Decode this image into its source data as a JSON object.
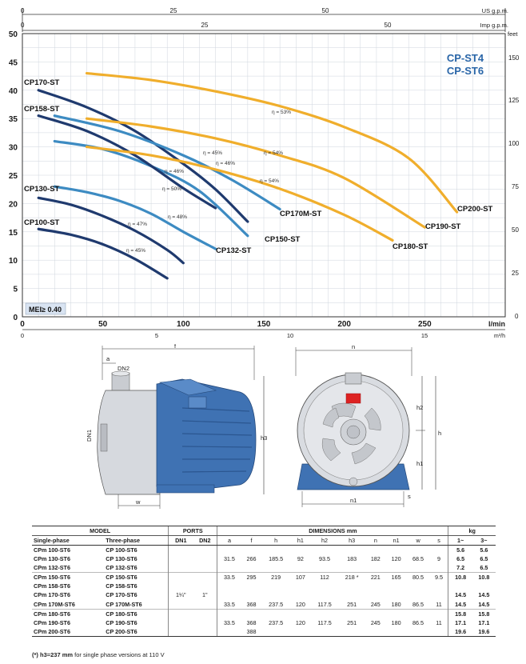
{
  "chart_data": {
    "type": "line",
    "title": "CP-ST4\nCP-ST6",
    "title_lines": [
      "CP-ST4",
      "CP-ST6"
    ],
    "badge": "MEI≥ 0.40",
    "xlabel": "l/min",
    "ylabel": "",
    "xlim": [
      0,
      300
    ],
    "ylim": [
      0,
      50
    ],
    "x_ticks": [
      0,
      50,
      100,
      150,
      200,
      250
    ],
    "y_ticks": [
      0,
      5,
      10,
      15,
      20,
      25,
      30,
      35,
      40,
      45,
      50
    ],
    "secondary_axes": {
      "us_gpm": {
        "label": "US g.p.m.",
        "ticks": [
          "0",
          "25",
          "50"
        ]
      },
      "imp_gpm": {
        "label": "Imp g.p.m.",
        "ticks": [
          "0",
          "25",
          "50"
        ]
      },
      "m3h": {
        "label": "m³/h",
        "ticks": [
          "0",
          "5",
          "10",
          "15"
        ]
      },
      "feet": {
        "label": "feet",
        "ticks": [
          "0",
          "25",
          "50",
          "75",
          "100",
          "125",
          "150"
        ]
      }
    },
    "grid": true,
    "series": [
      {
        "name": "CP100-ST",
        "color": "#1f3a6e",
        "x": [
          10,
          30,
          50,
          70,
          90
        ],
        "y": [
          15.5,
          14.5,
          12.8,
          10.2,
          6.8
        ]
      },
      {
        "name": "CP130-ST",
        "color": "#1f3a6e",
        "x": [
          10,
          30,
          50,
          70,
          90,
          100
        ],
        "y": [
          21,
          19.8,
          17.8,
          15.2,
          11.8,
          9.5
        ]
      },
      {
        "name": "CP132-ST",
        "color": "#3d8bc2",
        "x": [
          20,
          40,
          60,
          80,
          100,
          120
        ],
        "y": [
          23,
          22,
          20.5,
          18.2,
          15,
          12
        ]
      },
      {
        "name": "CP150-ST",
        "color": "#3d8bc2",
        "x": [
          20,
          50,
          80,
          110,
          140
        ],
        "y": [
          31,
          29.6,
          26.6,
          22.2,
          14.3
        ]
      },
      {
        "name": "CP158-ST",
        "color": "#1f3a6e",
        "x": [
          10,
          40,
          70,
          100,
          120
        ],
        "y": [
          35.5,
          32.8,
          28.5,
          22.7,
          19.2
        ]
      },
      {
        "name": "CP170-ST",
        "color": "#1f3a6e",
        "x": [
          10,
          40,
          70,
          100,
          120,
          140
        ],
        "y": [
          40,
          37,
          32.8,
          27,
          22.5,
          16.8
        ]
      },
      {
        "name": "CP170M-ST",
        "color": "#3d8bc2",
        "x": [
          20,
          60,
          100,
          130,
          160
        ],
        "y": [
          35.5,
          32.8,
          28.5,
          24.2,
          19
        ]
      },
      {
        "name": "CP180-ST",
        "color": "#f0ae2c",
        "x": [
          40,
          80,
          120,
          160,
          200,
          230
        ],
        "y": [
          30,
          28.5,
          26,
          22.6,
          18,
          13.5
        ]
      },
      {
        "name": "CP190-ST",
        "color": "#f0ae2c",
        "x": [
          40,
          80,
          120,
          160,
          200,
          250
        ],
        "y": [
          35,
          33.6,
          31.5,
          28.5,
          24.5,
          15.8
        ]
      },
      {
        "name": "CP200-ST",
        "color": "#f0ae2c",
        "x": [
          40,
          80,
          120,
          160,
          200,
          240,
          270
        ],
        "y": [
          43,
          41.8,
          39.8,
          37.2,
          33.5,
          28,
          18.5
        ]
      }
    ],
    "efficiency_labels": [
      "η = 45%",
      "η = 47%",
      "η = 48%",
      "η = 50%",
      "η = 46%",
      "η = 45%",
      "η = 46%",
      "η = 53%",
      "η = 54%",
      "η = 54%"
    ]
  },
  "drawings": {
    "side_labels": [
      "f",
      "a",
      "DN2",
      "DN1",
      "h3",
      "w"
    ],
    "front_labels": [
      "n",
      "h2",
      "h",
      "h1",
      "n1",
      "s"
    ]
  },
  "table": {
    "group_headers": [
      "MODEL",
      "PORTS",
      "DIMENSIONS mm",
      "kg"
    ],
    "column_headers": [
      "Single-phase",
      "Three-phase",
      "DN1",
      "DN2",
      "a",
      "f",
      "h",
      "h1",
      "h2",
      "h3",
      "n",
      "n1",
      "w",
      "s",
      "1~",
      "3~"
    ],
    "rows": [
      {
        "single": "CPm 100-ST6",
        "three": "CP 100-ST6",
        "dn1": "",
        "dn2": "",
        "a": "",
        "f": "",
        "h": "",
        "h1": "",
        "h2": "",
        "h3": "",
        "n": "",
        "n1": "",
        "w": "",
        "s": "",
        "kg1": "5.6",
        "kg3": "5.6"
      },
      {
        "single": "CPm 130-ST6",
        "three": "CP 130-ST6",
        "dn1": "",
        "dn2": "",
        "a": "31.5",
        "f": "266",
        "h": "185.5",
        "h1": "92",
        "h2": "93.5",
        "h3": "183",
        "n": "182",
        "n1": "120",
        "w": "68.5",
        "s": "9",
        "kg1": "6.5",
        "kg3": "6.5"
      },
      {
        "single": "CPm 132-ST6",
        "three": "CP 132-ST6",
        "dn1": "",
        "dn2": "",
        "a": "",
        "f": "",
        "h": "",
        "h1": "",
        "h2": "",
        "h3": "",
        "n": "",
        "n1": "",
        "w": "",
        "s": "",
        "kg1": "7.2",
        "kg3": "6.5"
      },
      {
        "single": "CPm 150-ST6",
        "three": "CP 150-ST6",
        "dn1": "",
        "dn2": "",
        "a": "33.5",
        "f": "295",
        "h": "219",
        "h1": "107",
        "h2": "112",
        "h3": "218 *",
        "n": "221",
        "n1": "165",
        "w": "80.5",
        "s": "9.5",
        "kg1": "10.8",
        "kg3": "10.8"
      },
      {
        "single": "CPm 158-ST6",
        "three": "CP 158-ST6",
        "dn1": "",
        "dn2": "",
        "a": "",
        "f": "",
        "h": "",
        "h1": "",
        "h2": "",
        "h3": "",
        "n": "",
        "n1": "",
        "w": "",
        "s": "",
        "kg1": "",
        "kg3": ""
      },
      {
        "single": "CPm 170-ST6",
        "three": "CP 170-ST6",
        "dn1": "1¼\"",
        "dn2": "1\"",
        "a": "",
        "f": "",
        "h": "",
        "h1": "",
        "h2": "",
        "h3": "",
        "n": "",
        "n1": "",
        "w": "",
        "s": "",
        "kg1": "14.5",
        "kg3": "14.5"
      },
      {
        "single": "CPm 170M-ST6",
        "three": "CP 170M-ST6",
        "dn1": "",
        "dn2": "",
        "a": "33.5",
        "f": "368",
        "h": "237.5",
        "h1": "120",
        "h2": "117.5",
        "h3": "251",
        "n": "245",
        "n1": "180",
        "w": "86.5",
        "s": "11",
        "kg1": "14.5",
        "kg3": "14.5"
      },
      {
        "single": "CPm 180-ST6",
        "three": "CP 180-ST6",
        "dn1": "",
        "dn2": "",
        "a": "",
        "f": "",
        "h": "",
        "h1": "",
        "h2": "",
        "h3": "",
        "n": "",
        "n1": "",
        "w": "",
        "s": "",
        "kg1": "15.8",
        "kg3": "15.8"
      },
      {
        "single": "CPm 190-ST6",
        "three": "CP 190-ST6",
        "dn1": "",
        "dn2": "",
        "a": "33.5",
        "f": "368",
        "h": "237.5",
        "h1": "120",
        "h2": "117.5",
        "h3": "251",
        "n": "245",
        "n1": "180",
        "w": "86.5",
        "s": "11",
        "kg1": "17.1",
        "kg3": "17.1"
      },
      {
        "single": "CPm 200-ST6",
        "three": "CP 200-ST6",
        "dn1": "",
        "dn2": "",
        "a": "",
        "f": "388",
        "h": "",
        "h1": "",
        "h2": "",
        "h3": "",
        "n": "",
        "n1": "",
        "w": "",
        "s": "",
        "kg1": "19.6",
        "kg3": "19.6"
      }
    ],
    "footnote_bold": "(*) h3=237 mm",
    "footnote_rest": " for single phase versions at 110 V"
  },
  "colors": {
    "dark_blue": "#1f3a6e",
    "mid_blue": "#3d8bc2",
    "orange": "#f0ae2c",
    "grid": "#cfd6de",
    "pump_blue": "#3f72b3"
  }
}
